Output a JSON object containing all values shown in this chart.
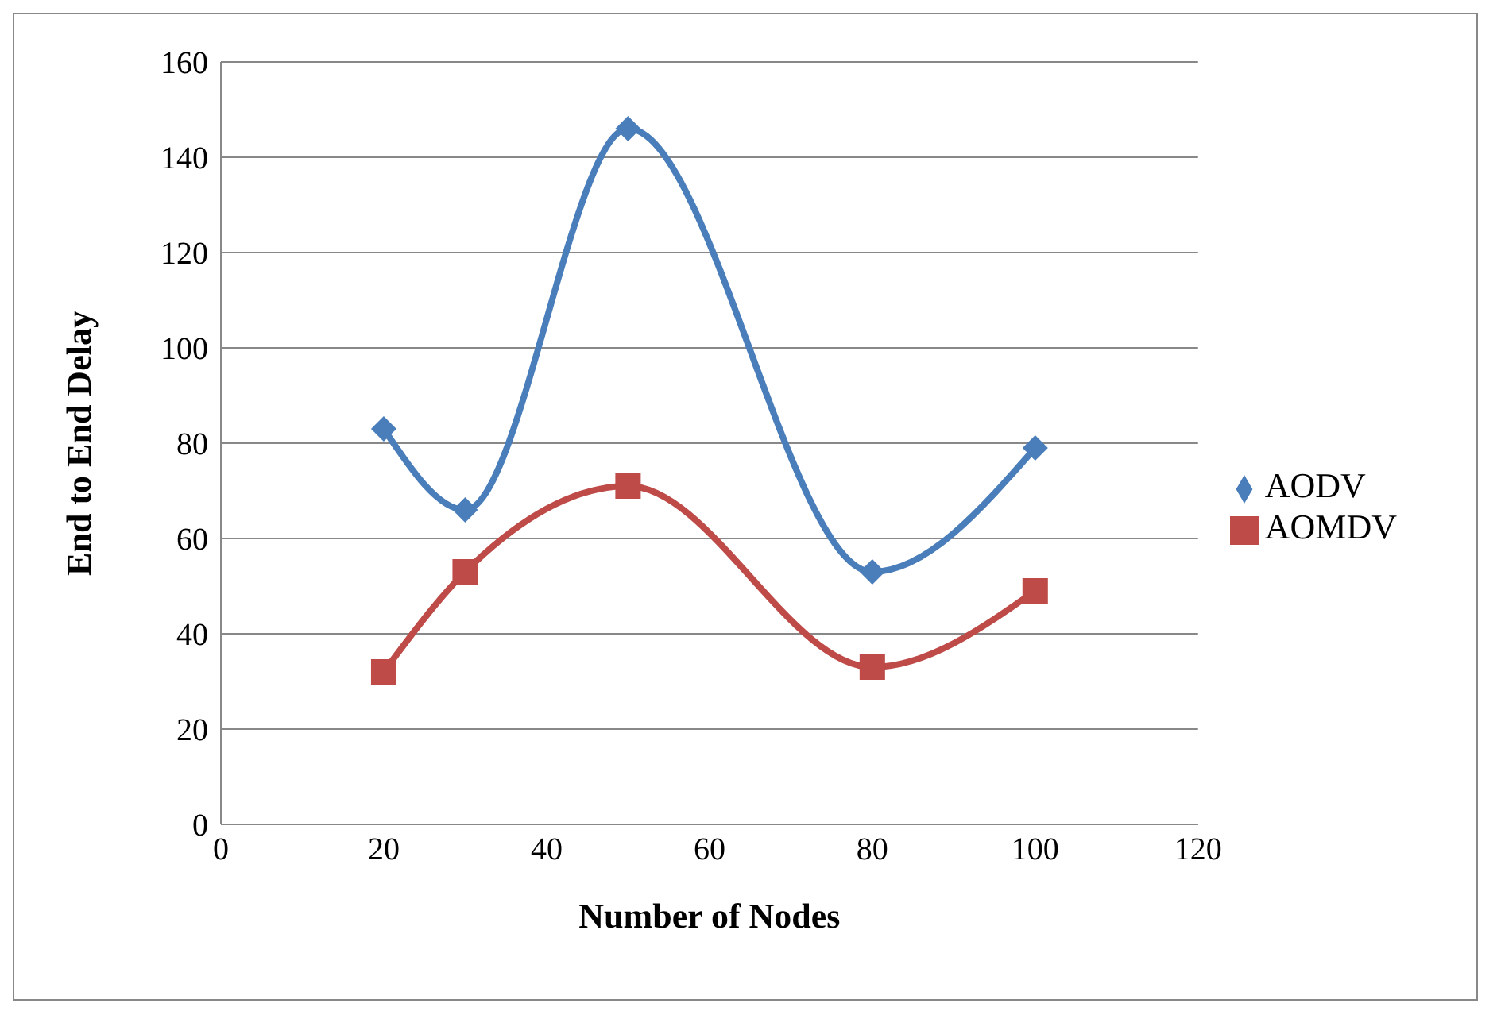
{
  "chart_data": {
    "type": "line",
    "xlabel": "Number of Nodes",
    "ylabel": "End to End Delay",
    "xlim": [
      0,
      120
    ],
    "xticks": [
      0,
      20,
      40,
      60,
      80,
      100,
      120
    ],
    "ylim": [
      0,
      160
    ],
    "yticks": [
      0,
      20,
      40,
      60,
      80,
      100,
      120,
      140,
      160
    ],
    "grid": "y",
    "legend": "right",
    "line_style": "solid",
    "x": [
      20,
      30,
      50,
      80,
      100
    ],
    "series": [
      {
        "name": "AODV",
        "color": "#4a7ebb",
        "marker": "diamond",
        "values": [
          83,
          66,
          146,
          53,
          79
        ]
      },
      {
        "name": "AOMDV",
        "color": "#be4b48",
        "marker": "square",
        "values": [
          32,
          53,
          71,
          33,
          49
        ]
      }
    ]
  }
}
